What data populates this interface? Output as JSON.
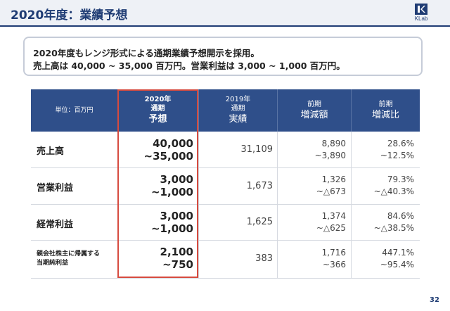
{
  "slide": {
    "title": "2020年度：業績予想",
    "logo_text": "KLab",
    "page_number": "32",
    "colors": {
      "title": "#1f3c74",
      "table_header": "#2f4f8a",
      "highlight_frame": "#d64b3f"
    }
  },
  "summary": {
    "line1": "2020年度もレンジ形式による通期業績予想開示を採用。",
    "line2": "売上高は 40,000 ~ 35,000 百万円。営業利益は 3,000 ~ 1,000 百万円。"
  },
  "table": {
    "unit_label": "単位：百万円",
    "headers": [
      {
        "line1": "2020年",
        "line2": "通期",
        "line3": "予想"
      },
      {
        "line1": "2019年",
        "line2": "通期",
        "line3": "実績"
      },
      {
        "line1": "前期",
        "line2": "増減額",
        "line3": ""
      },
      {
        "line1": "前期",
        "line2": "増減比",
        "line3": ""
      }
    ],
    "rows": [
      {
        "label": "売上高",
        "forecast": [
          "40,000",
          "~35,000"
        ],
        "actual": "31,109",
        "change": [
          "8,890",
          "~3,890"
        ],
        "ratio": [
          "28.6%",
          "~12.5%"
        ]
      },
      {
        "label": "営業利益",
        "forecast": [
          "3,000",
          "~1,000"
        ],
        "actual": "1,673",
        "change": [
          "1,326",
          "~△673"
        ],
        "ratio": [
          "79.3%",
          "~△40.3%"
        ]
      },
      {
        "label": "経常利益",
        "forecast": [
          "3,000",
          "~1,000"
        ],
        "actual": "1,625",
        "change": [
          "1,374",
          "~△625"
        ],
        "ratio": [
          "84.6%",
          "~△38.5%"
        ]
      },
      {
        "label": [
          "親会社株主に帰属する",
          "当期純利益"
        ],
        "forecast": [
          "2,100",
          "~750"
        ],
        "actual": "383",
        "change": [
          "1,716",
          "~366"
        ],
        "ratio": [
          "447.1%",
          "~95.4%"
        ]
      }
    ]
  }
}
